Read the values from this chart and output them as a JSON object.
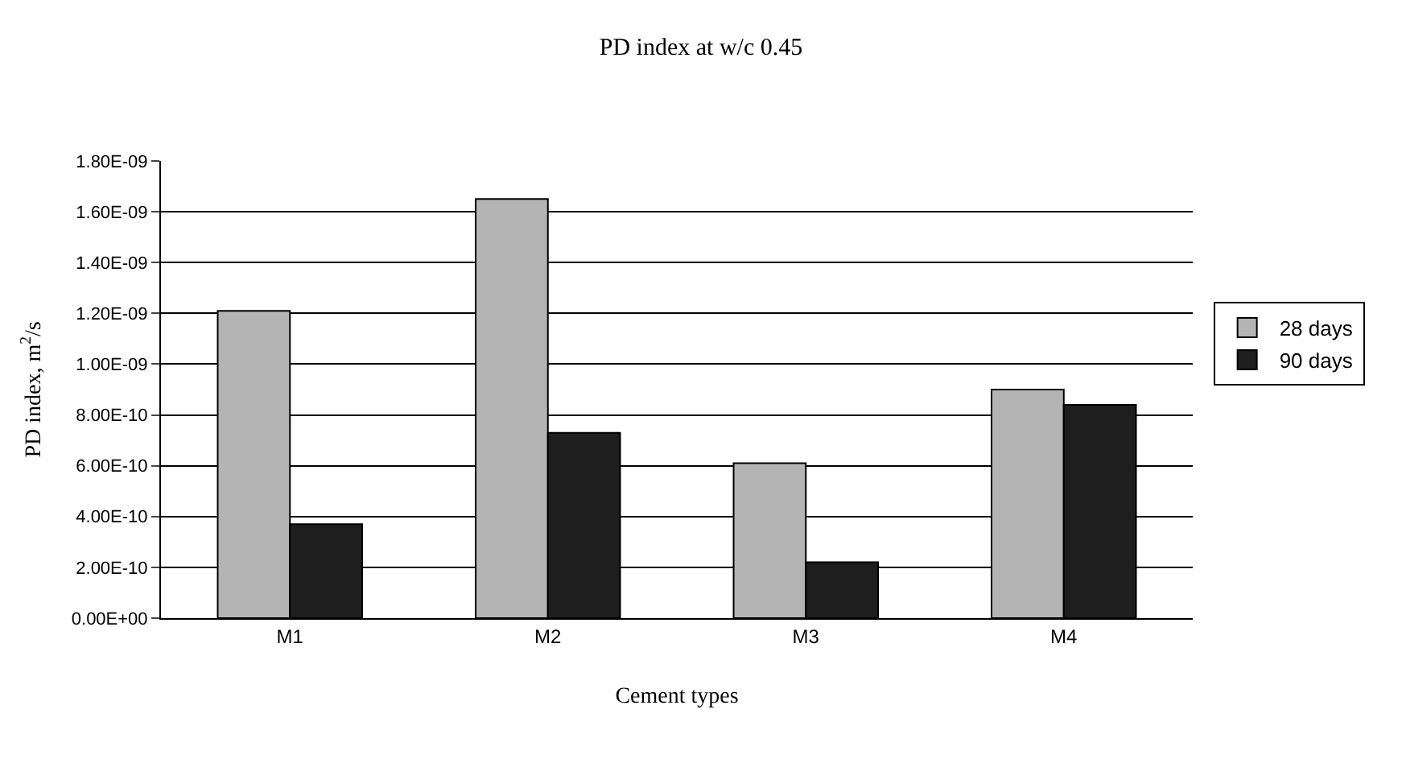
{
  "chart_data": {
    "type": "bar",
    "title": "PD index at w/c 0.45",
    "xlabel": "Cement types",
    "ylabel": "PD index, m$^{2}$/s",
    "categories": [
      "M1",
      "M2",
      "M3",
      "M4"
    ],
    "series": [
      {
        "name": "28 days",
        "color": "#b4b4b4",
        "values": [
          1.21e-09,
          1.65e-09,
          6.1e-10,
          9e-10
        ]
      },
      {
        "name": "90 days",
        "color": "#1e1e1e",
        "values": [
          3.7e-10,
          7.3e-10,
          2.2e-10,
          8.4e-10
        ]
      }
    ],
    "ylim": [
      0,
      1.8e-09
    ],
    "yticks": [
      {
        "value": 0,
        "label": "0.00E+00"
      },
      {
        "value": 2e-10,
        "label": "2.00E-10"
      },
      {
        "value": 4e-10,
        "label": "4.00E-10"
      },
      {
        "value": 6e-10,
        "label": "6.00E-10"
      },
      {
        "value": 8e-10,
        "label": "8.00E-10"
      },
      {
        "value": 1e-09,
        "label": "1.00E-09"
      },
      {
        "value": 1.2e-09,
        "label": "1.20E-09"
      },
      {
        "value": 1.4e-09,
        "label": "1.40E-09"
      },
      {
        "value": 1.6e-09,
        "label": "1.60E-09"
      },
      {
        "value": 1.8e-09,
        "label": "1.80E-09"
      }
    ],
    "grid": "y",
    "legend": "right"
  }
}
